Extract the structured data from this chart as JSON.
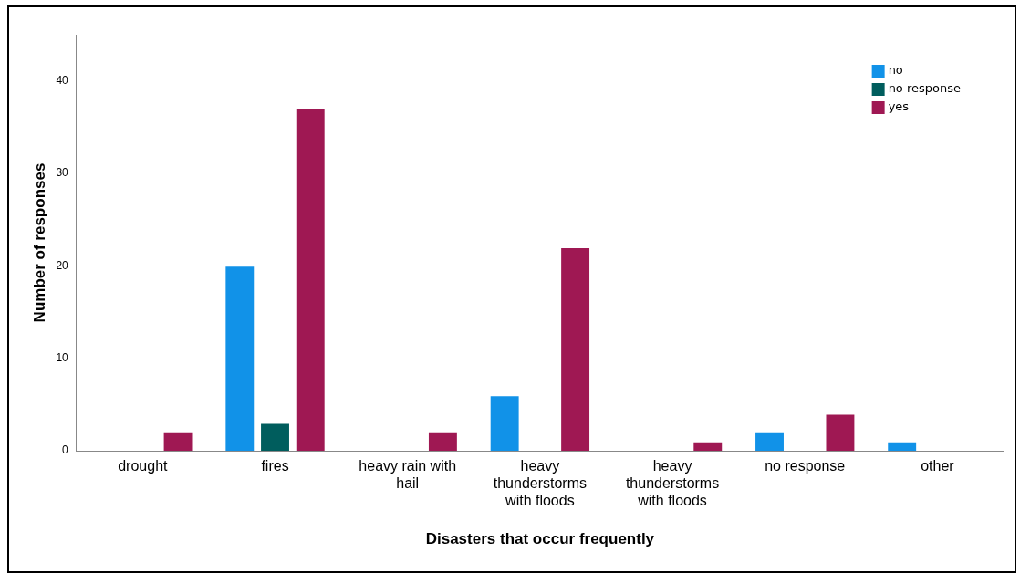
{
  "chart_data": {
    "type": "bar",
    "xlabel": "Disasters that occur frequently",
    "ylabel": "Number of responses",
    "categories": [
      "drought",
      "fires",
      "heavy rain with hail",
      "heavy thunderstorms with floods",
      "heavy thunderstorms with floods",
      "no response",
      "other"
    ],
    "series": [
      {
        "name": "no",
        "color": "#1192e8",
        "values": [
          0,
          20,
          0,
          6,
          0,
          2,
          1
        ]
      },
      {
        "name": "no response",
        "color": "#005d5d",
        "values": [
          0,
          3,
          0,
          0,
          0,
          0,
          0
        ]
      },
      {
        "name": "yes",
        "color": "#9f1853",
        "values": [
          2,
          37,
          2,
          22,
          1,
          4,
          0
        ]
      }
    ],
    "ylim": [
      0,
      45
    ],
    "yticks": [
      0,
      10,
      20,
      30,
      40
    ],
    "grid": false,
    "legend": "top right"
  }
}
